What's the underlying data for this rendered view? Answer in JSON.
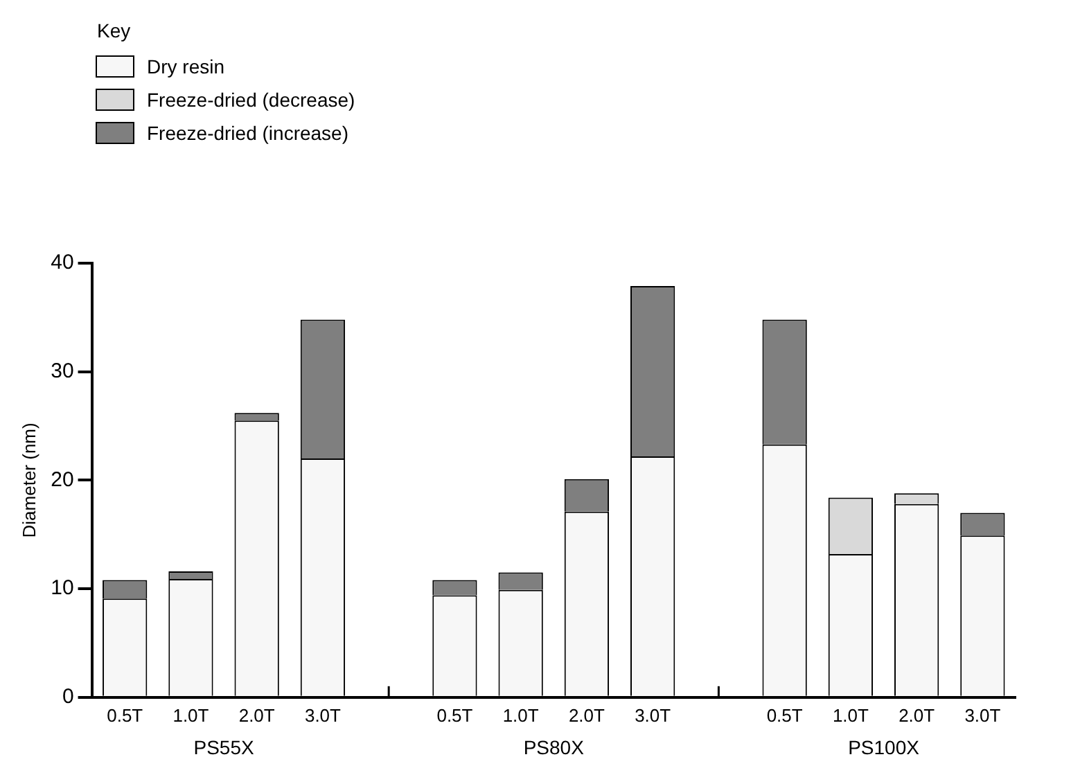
{
  "chart_data": {
    "type": "bar",
    "stacked": true,
    "legend": "top left",
    "legend_title": "Key",
    "ylabel": "Diameter (nm)",
    "categories": [
      "0.5T",
      "1.0T",
      "2.0T",
      "3.0T",
      null,
      "0.5T",
      "1.0T",
      "2.0T",
      "3.0T",
      null,
      "0.5T",
      "1.0T",
      "2.0T",
      "3.0T"
    ],
    "series": [
      {
        "name": "Dry resin",
        "color": "#f7f7f7",
        "values": [
          9.1,
          10.9,
          25.5,
          22.0,
          null,
          9.4,
          9.9,
          17.1,
          22.2,
          null,
          23.3,
          13.2,
          17.8,
          14.9
        ]
      },
      {
        "name": "Freeze-dried (decrease)",
        "color": "#d9d9d9",
        "values": [
          null,
          null,
          null,
          null,
          null,
          null,
          null,
          null,
          null,
          null,
          null,
          5.2,
          1.0,
          null
        ]
      },
      {
        "name": "Freeze-dried (increase)",
        "color": "#7f7f7f",
        "values": [
          1.7,
          0.7,
          0.7,
          12.8,
          null,
          1.4,
          1.6,
          3.0,
          15.7,
          null,
          11.5,
          null,
          null,
          2.1
        ]
      }
    ],
    "ylim": [
      0,
      40
    ],
    "yticks": [
      0,
      10,
      20,
      30,
      40
    ],
    "grid": false,
    "annotations": [
      "PS55X",
      "PS80X",
      "PS100X"
    ]
  }
}
